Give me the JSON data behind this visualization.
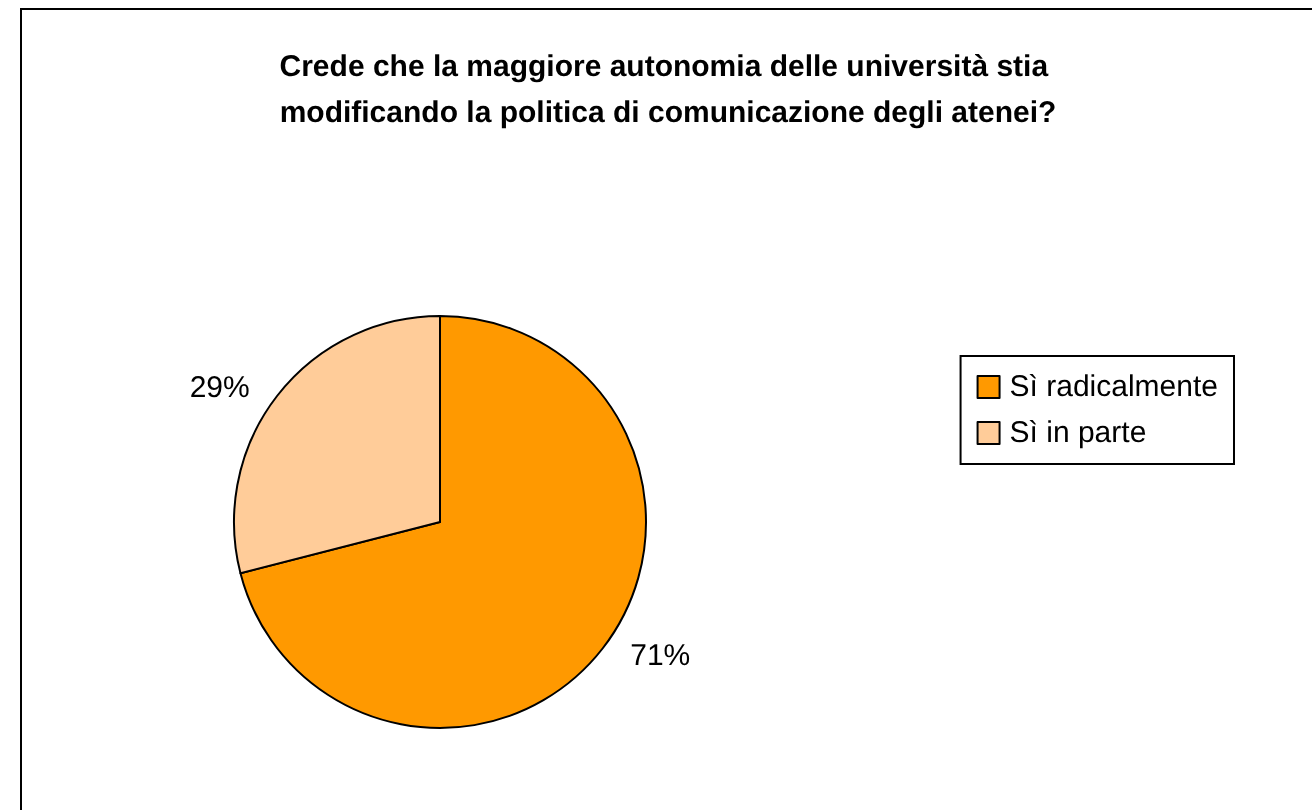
{
  "chart_data": {
    "type": "pie",
    "title": "Crede che la maggiore autonomia delle università stia modificando la politica di comunicazione degli atenei?",
    "categories": [
      "Sì radicalmente",
      "Sì in parte"
    ],
    "values": [
      71,
      29
    ],
    "colors": [
      "#ff9900",
      "#ffcc99"
    ],
    "value_labels": [
      "71%",
      "29%"
    ],
    "legend": "right"
  }
}
